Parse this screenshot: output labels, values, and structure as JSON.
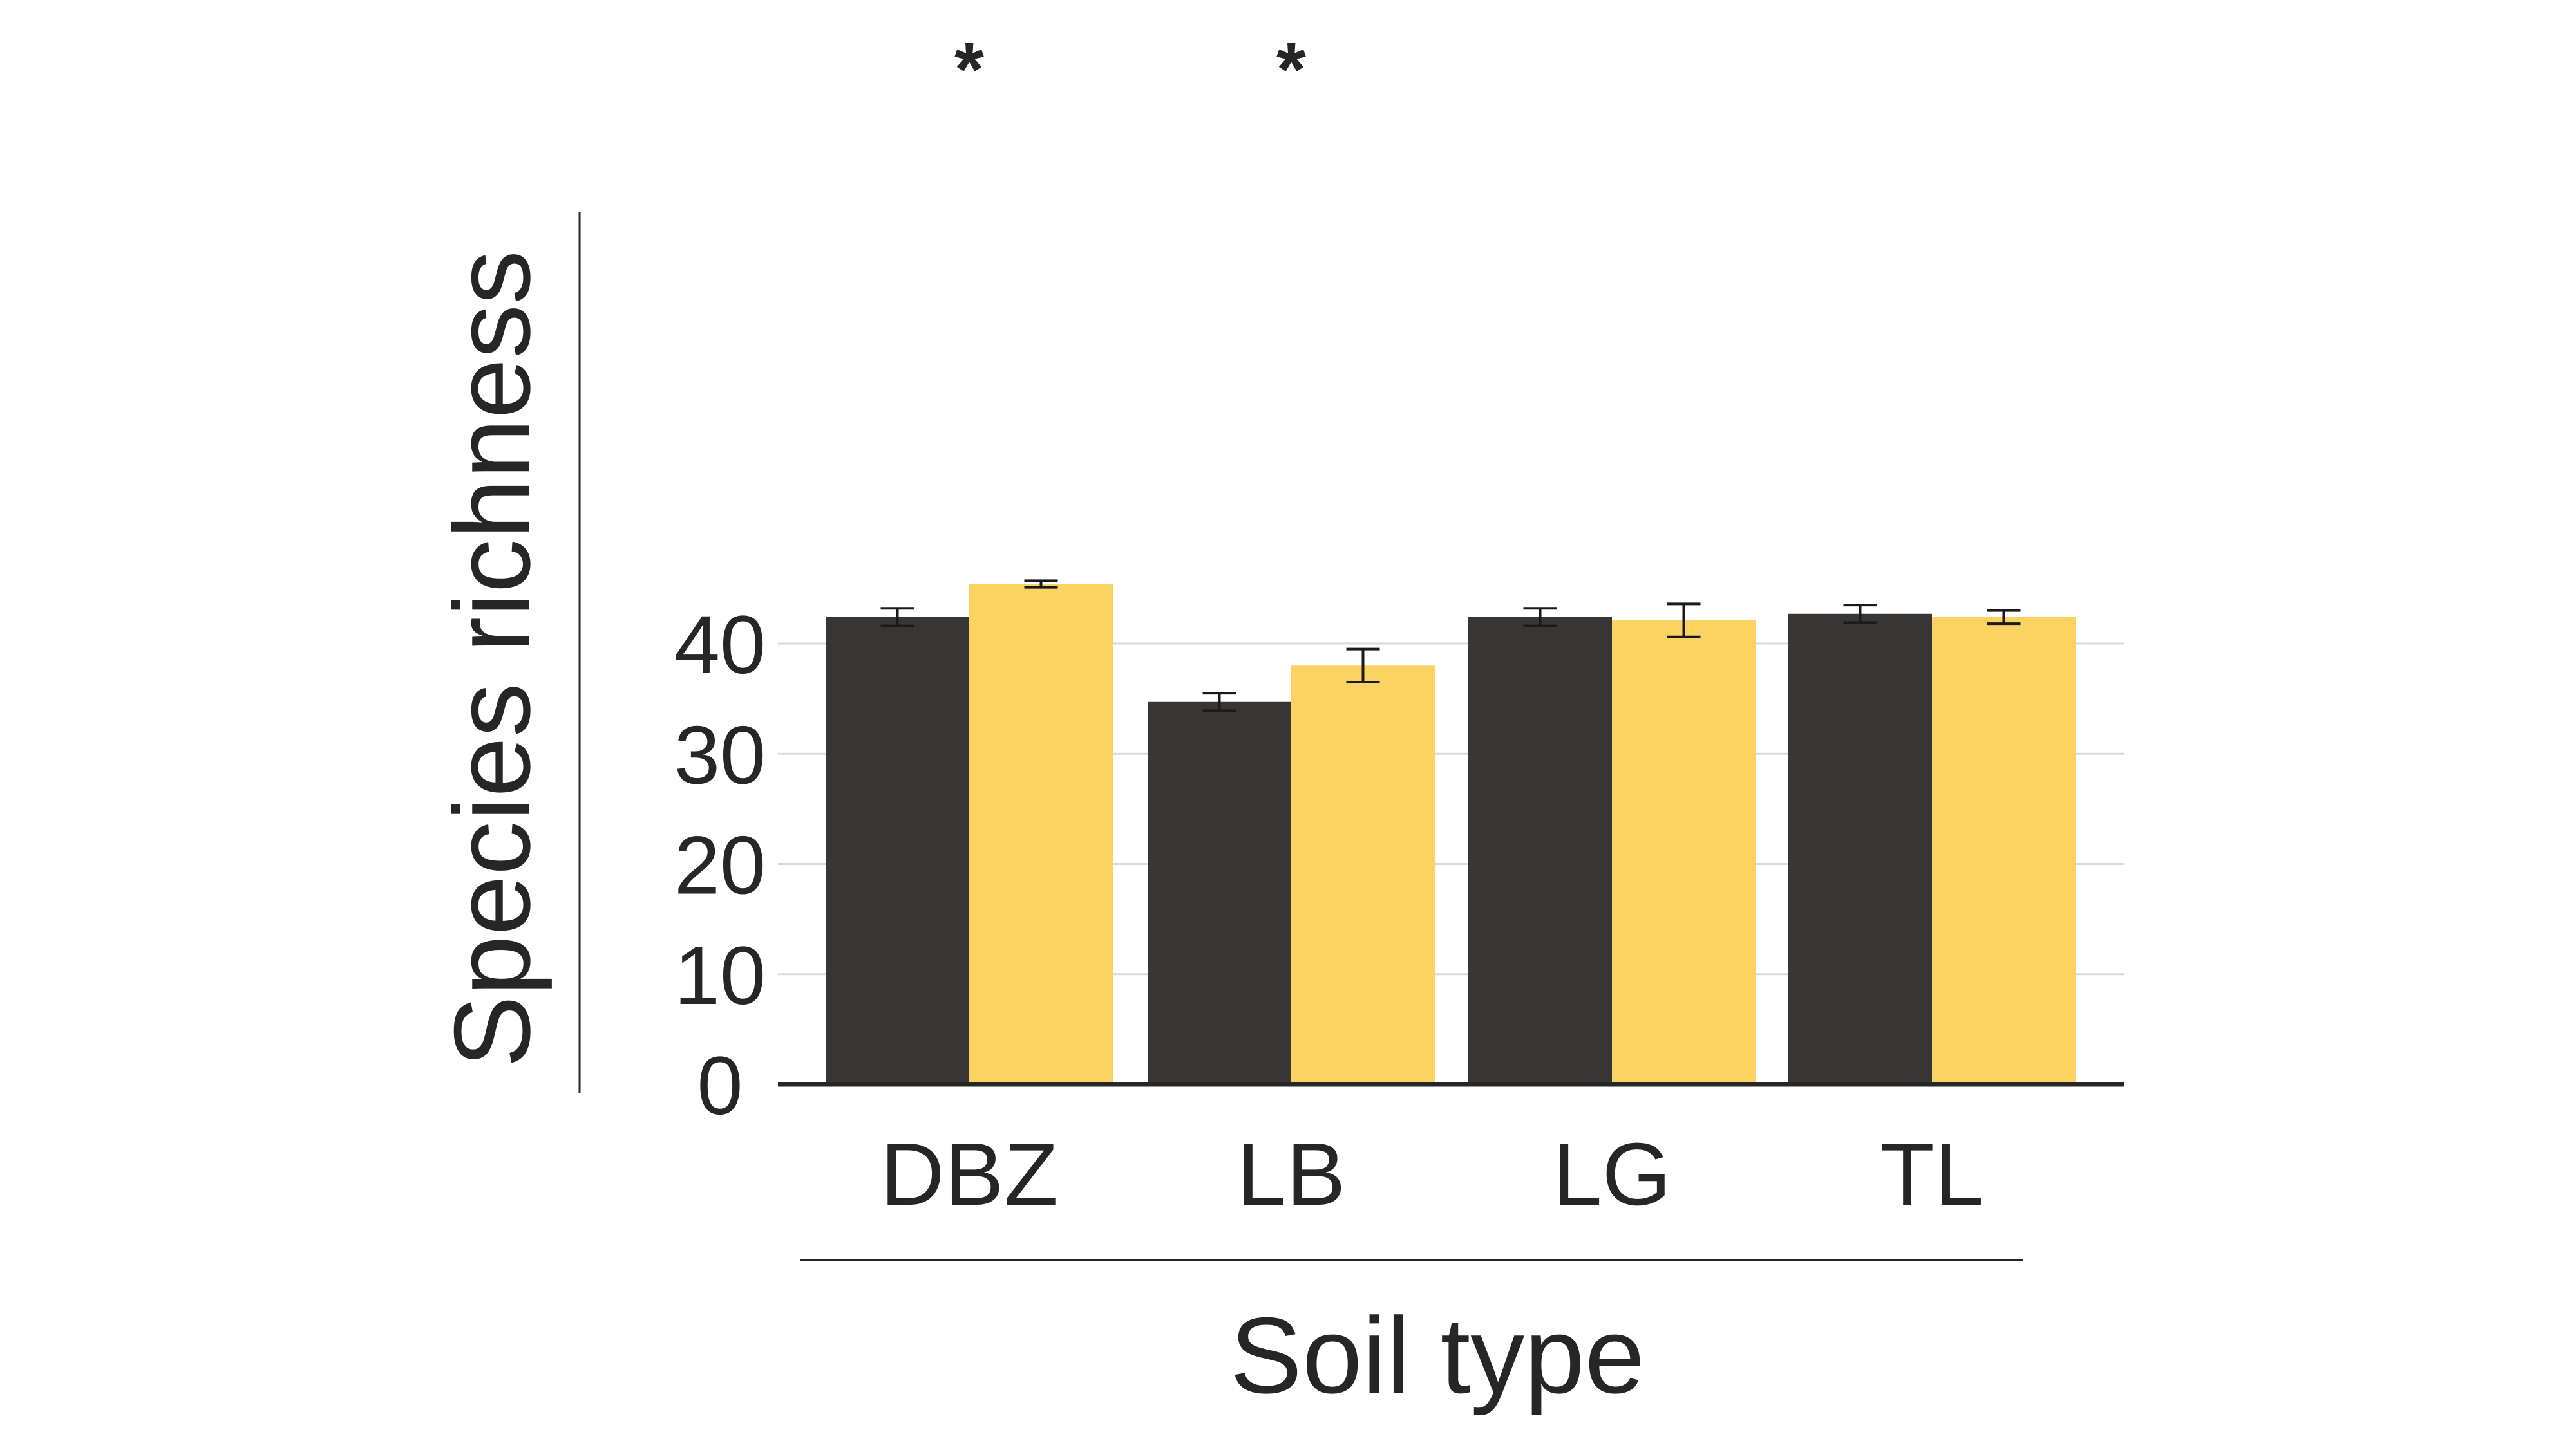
{
  "chart_data": {
    "type": "bar",
    "xlabel": "Soil type",
    "ylabel": "Species richness",
    "categories": [
      "DBZ",
      "LB",
      "LG",
      "TL"
    ],
    "ylim": [
      0,
      45
    ],
    "yticks": [
      0,
      10,
      20,
      30,
      40
    ],
    "yticks_labels": [
      "0",
      "10",
      "20",
      "30",
      "40"
    ],
    "grid": true,
    "legend": "none",
    "series": [
      {
        "color": "#383635",
        "values": [
          42.4,
          34.7,
          42.4,
          42.7
        ],
        "errors": [
          0.8,
          0.8,
          0.8,
          0.8
        ]
      },
      {
        "color": "#FCD262",
        "values": [
          45.4,
          38.0,
          42.1,
          42.4
        ],
        "errors": [
          0.3,
          1.5,
          1.5,
          0.6
        ]
      }
    ],
    "annotations": [
      {
        "category": "DBZ",
        "text": "*"
      },
      {
        "category": "LB",
        "text": "*"
      }
    ]
  }
}
